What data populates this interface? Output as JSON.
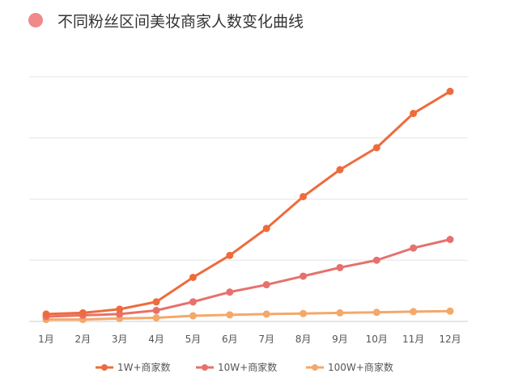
{
  "chart_data": {
    "type": "line",
    "title": "不同粉丝区间美妆商家人数变化曲线",
    "xlabel": "",
    "ylabel": "",
    "categories": [
      "1月",
      "2月",
      "3月",
      "4月",
      "5月",
      "6月",
      "7月",
      "8月",
      "9月",
      "10月",
      "11月",
      "12月"
    ],
    "ylim": [
      0,
      100
    ],
    "grid": true,
    "legend_position": "bottom",
    "series": [
      {
        "name": "1W+商家数",
        "color": "#ee6b3c",
        "values": [
          3,
          3.5,
          5,
          8,
          18,
          27,
          38,
          51,
          62,
          71,
          85,
          94
        ]
      },
      {
        "name": "10W+商家数",
        "color": "#e6716c",
        "values": [
          2,
          2.5,
          3,
          4.5,
          8,
          12,
          15,
          18.5,
          22,
          25,
          30,
          33.5
        ]
      },
      {
        "name": "100W+商家数",
        "color": "#f4a86a",
        "values": [
          0.8,
          0.8,
          1.2,
          1.5,
          2.3,
          2.7,
          3,
          3.2,
          3.5,
          3.7,
          4,
          4.2
        ]
      }
    ]
  },
  "title_dot_color": "#f08a8a"
}
